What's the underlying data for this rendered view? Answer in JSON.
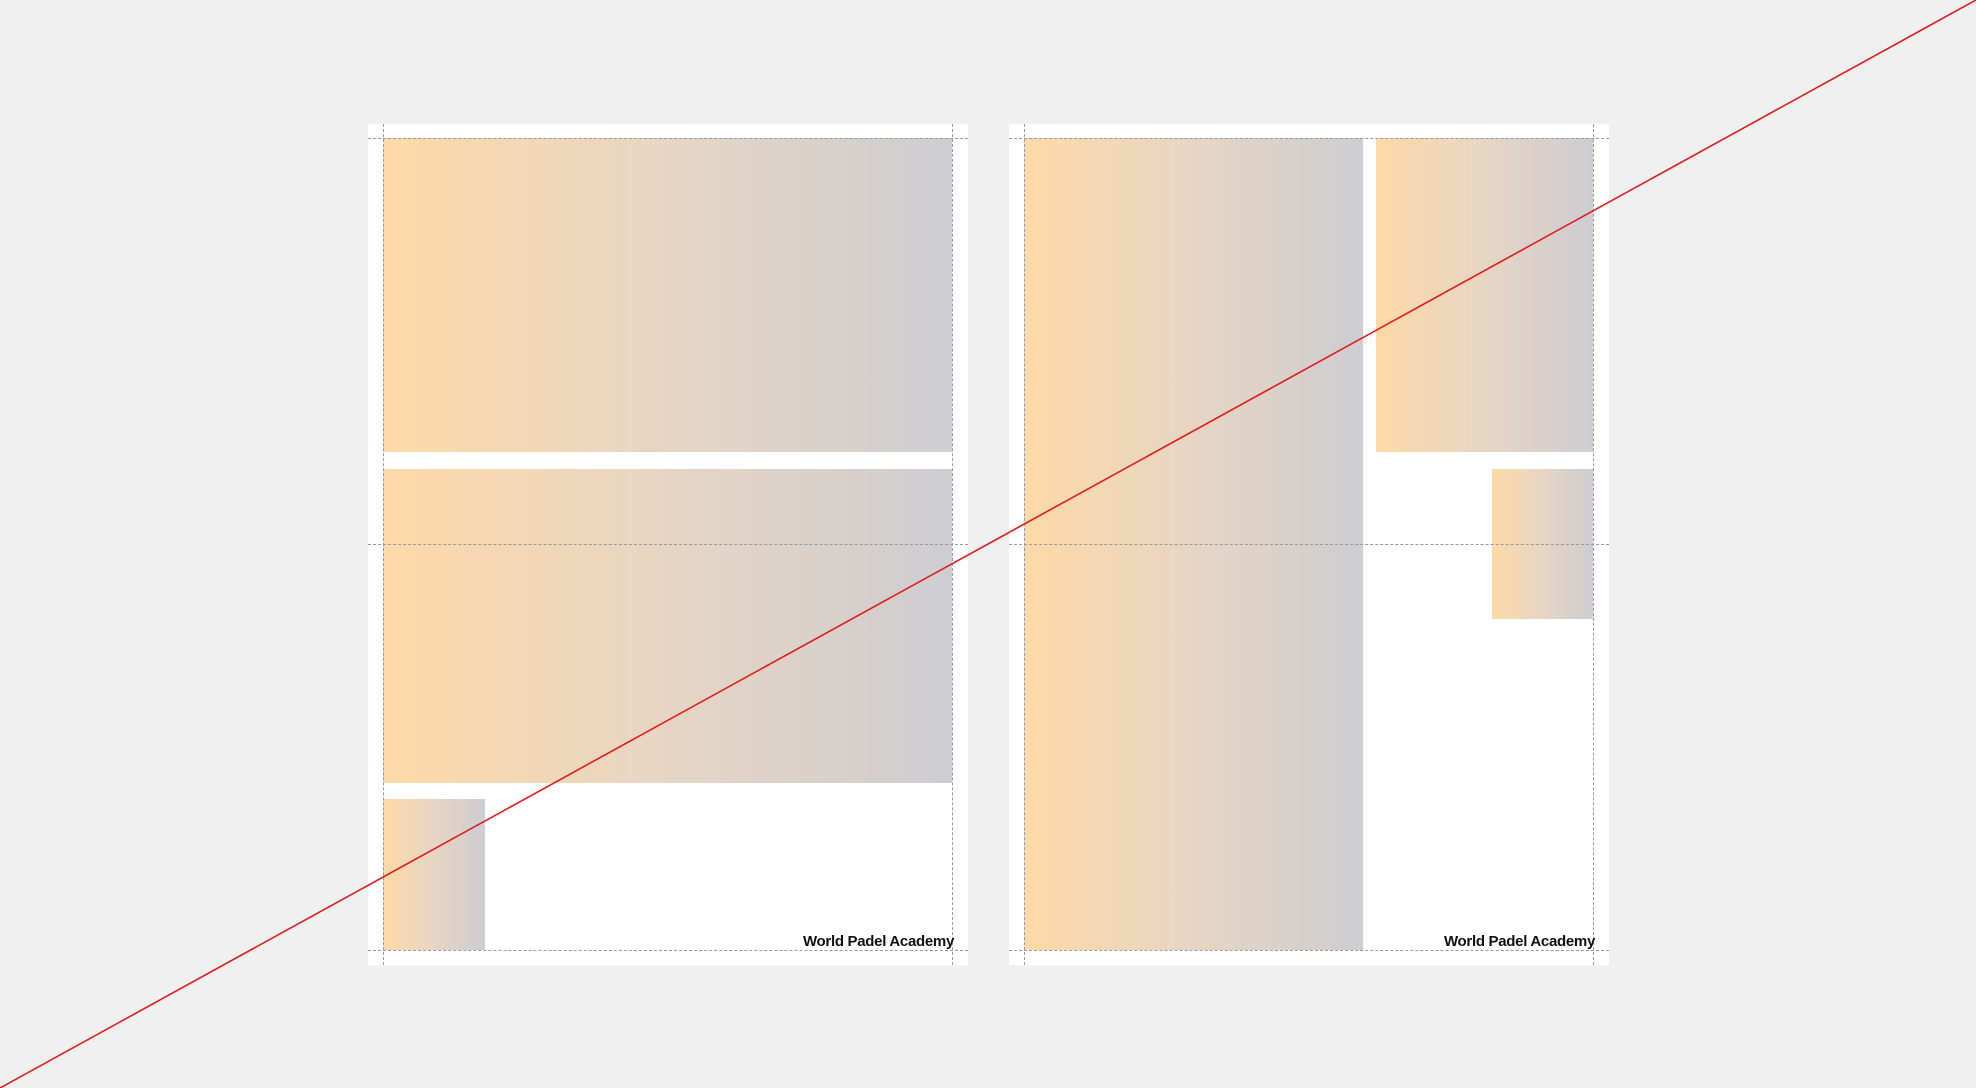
{
  "pages": [
    {
      "id": "left",
      "footer_label": "World Padel Academy"
    },
    {
      "id": "right",
      "footer_label": "World Padel Academy"
    }
  ],
  "colors": {
    "background": "#f0f0f0",
    "page": "#ffffff",
    "gradient_start": "#fdd9a6",
    "gradient_end": "#cdcdd2",
    "guide": "#9a9a9a",
    "diagonal": "#e31b1b"
  }
}
